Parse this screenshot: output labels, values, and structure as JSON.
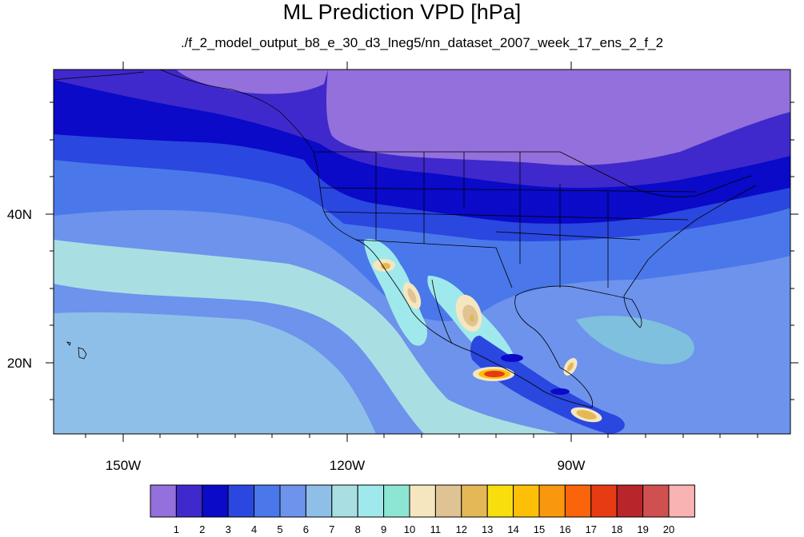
{
  "title": "ML Prediction VPD [hPa]",
  "subtitle": "./f_2_model_output_b8_e_30_d3_lneg5/nn_dataset_2007_week_17_ens_2_f_2",
  "map": {
    "projection": "cylindrical-equidistant",
    "lon_range": [
      -160,
      -62
    ],
    "lat_range": [
      11,
      60
    ],
    "lon_labels": [
      "150W",
      "120W",
      "90W"
    ],
    "lat_labels": [
      "40N",
      "20N"
    ]
  },
  "colorbar": {
    "colors": [
      "#9370db",
      "#3f29cc",
      "#0a0ac8",
      "#2a47e0",
      "#4a78ea",
      "#6d93ec",
      "#8ebfe8",
      "#a9dfe2",
      "#9fe9ec",
      "#8de6d3",
      "#f5e6c0",
      "#dfc394",
      "#e4b856",
      "#f9de0e",
      "#fdbf08",
      "#f9980e",
      "#fa640a",
      "#e73b14",
      "#b8252a",
      "#d05050",
      "#f9b3b3"
    ],
    "labels": [
      "1",
      "2",
      "3",
      "4",
      "5",
      "6",
      "7",
      "8",
      "9",
      "10",
      "11",
      "12",
      "13",
      "14",
      "15",
      "16",
      "17",
      "18",
      "19",
      "20"
    ]
  }
}
